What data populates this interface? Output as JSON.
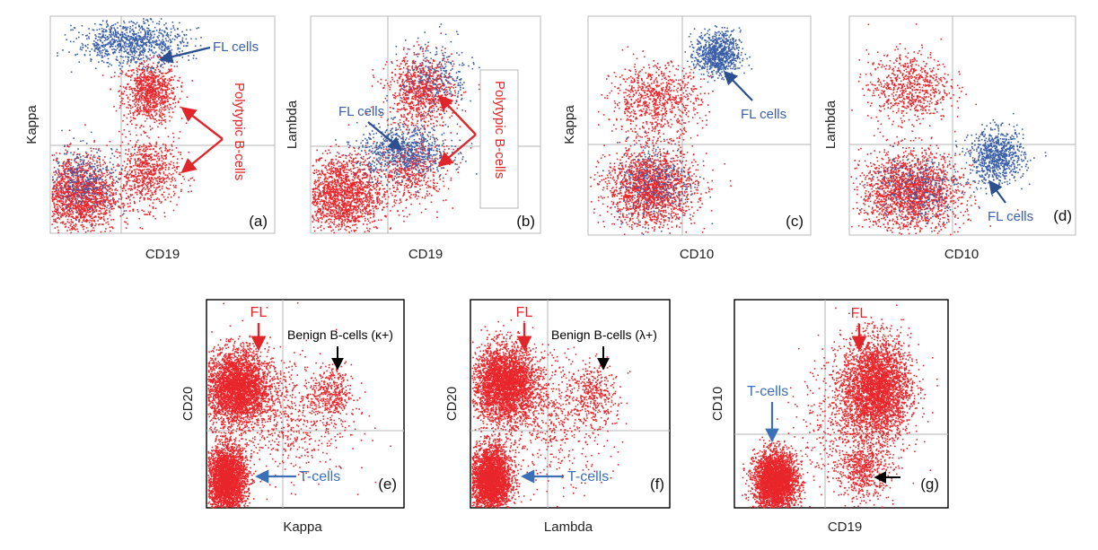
{
  "colors": {
    "red": "#e8262b",
    "blue": "#3a5fa8",
    "arrow_blue": "#3b6fb6",
    "arrow_red": "#e0262a",
    "black": "#000000"
  },
  "chart_data": [
    {
      "type": "scatter",
      "panel": "(a)",
      "xlabel": "CD19",
      "ylabel": "Kappa",
      "grid": false,
      "quadrant_gates": true,
      "series": [
        {
          "color": "red",
          "clusters": [
            {
              "label": "polytypic B-cells upper",
              "cx": 0.44,
              "cy": 0.65,
              "sx": 0.06,
              "sy": 0.07,
              "n": 900
            },
            {
              "label": "polytypic B-cells lower",
              "cx": 0.43,
              "cy": 0.28,
              "sx": 0.07,
              "sy": 0.08,
              "n": 700
            },
            {
              "label": "negative",
              "cx": 0.12,
              "cy": 0.18,
              "sx": 0.09,
              "sy": 0.09,
              "n": 1700
            }
          ]
        },
        {
          "color": "blue",
          "clusters": [
            {
              "label": "FL cells",
              "cx": 0.36,
              "cy": 0.88,
              "sx": 0.12,
              "sy": 0.05,
              "n": 900
            },
            {
              "label": "negative",
              "cx": 0.15,
              "cy": 0.25,
              "sx": 0.09,
              "sy": 0.08,
              "n": 350
            }
          ]
        }
      ],
      "annotations": [
        {
          "text": "FL cells",
          "color": "blue"
        },
        {
          "text": "Polytypic B-cells",
          "color": "red"
        }
      ]
    },
    {
      "type": "scatter",
      "panel": "(b)",
      "xlabel": "CD19",
      "ylabel": "Lambda",
      "grid": false,
      "quadrant_gates": true,
      "series": [
        {
          "color": "red",
          "clusters": [
            {
              "label": "polytypic B-cells upper",
              "cx": 0.48,
              "cy": 0.66,
              "sx": 0.07,
              "sy": 0.08,
              "n": 900
            },
            {
              "label": "polytypic B-cells lower",
              "cx": 0.43,
              "cy": 0.3,
              "sx": 0.08,
              "sy": 0.08,
              "n": 600
            },
            {
              "label": "negative",
              "cx": 0.13,
              "cy": 0.18,
              "sx": 0.09,
              "sy": 0.09,
              "n": 1700
            }
          ]
        },
        {
          "color": "blue",
          "clusters": [
            {
              "label": "FL cells",
              "cx": 0.4,
              "cy": 0.38,
              "sx": 0.1,
              "sy": 0.06,
              "n": 700
            },
            {
              "label": "upper diffuse",
              "cx": 0.55,
              "cy": 0.72,
              "sx": 0.08,
              "sy": 0.09,
              "n": 250
            }
          ]
        }
      ],
      "annotations": [
        {
          "text": "FL cells",
          "color": "blue"
        },
        {
          "text": "Polytypic B-cells",
          "color": "red"
        }
      ]
    },
    {
      "type": "scatter",
      "panel": "(c)",
      "xlabel": "CD10",
      "ylabel": "Kappa",
      "grid": false,
      "quadrant_gates": true,
      "series": [
        {
          "color": "red",
          "clusters": [
            {
              "label": "upper left",
              "cx": 0.3,
              "cy": 0.62,
              "sx": 0.1,
              "sy": 0.08,
              "n": 800
            },
            {
              "label": "negative",
              "cx": 0.28,
              "cy": 0.22,
              "sx": 0.1,
              "sy": 0.09,
              "n": 1800
            }
          ]
        },
        {
          "color": "blue",
          "clusters": [
            {
              "label": "FL cells",
              "cx": 0.58,
              "cy": 0.83,
              "sx": 0.05,
              "sy": 0.05,
              "n": 800
            },
            {
              "label": "negative",
              "cx": 0.3,
              "cy": 0.25,
              "sx": 0.09,
              "sy": 0.09,
              "n": 300
            }
          ]
        }
      ],
      "annotations": [
        {
          "text": "FL cells",
          "color": "blue"
        }
      ]
    },
    {
      "type": "scatter",
      "panel": "(d)",
      "xlabel": "CD10",
      "ylabel": "Lambda",
      "grid": false,
      "quadrant_gates": true,
      "series": [
        {
          "color": "red",
          "clusters": [
            {
              "label": "upper left",
              "cx": 0.26,
              "cy": 0.68,
              "sx": 0.09,
              "sy": 0.08,
              "n": 700
            },
            {
              "label": "negative",
              "cx": 0.27,
              "cy": 0.2,
              "sx": 0.11,
              "sy": 0.09,
              "n": 1900
            }
          ]
        },
        {
          "color": "blue",
          "clusters": [
            {
              "label": "FL cells",
              "cx": 0.65,
              "cy": 0.36,
              "sx": 0.06,
              "sy": 0.06,
              "n": 800
            },
            {
              "label": "negative",
              "cx": 0.3,
              "cy": 0.22,
              "sx": 0.1,
              "sy": 0.08,
              "n": 300
            }
          ]
        }
      ],
      "annotations": [
        {
          "text": "FL cells",
          "color": "blue"
        }
      ]
    },
    {
      "type": "scatter",
      "panel": "(e)",
      "xlabel": "Kappa",
      "ylabel": "CD20",
      "grid": false,
      "quadrant_gates": true,
      "series": [
        {
          "color": "red",
          "clusters": [
            {
              "label": "FL",
              "cx": 0.15,
              "cy": 0.58,
              "sx": 0.08,
              "sy": 0.09,
              "n": 3200
            },
            {
              "label": "T-cells",
              "cx": 0.1,
              "cy": 0.14,
              "sx": 0.05,
              "sy": 0.08,
              "n": 3000
            },
            {
              "label": "Benign B-cells (κ+)",
              "cx": 0.63,
              "cy": 0.55,
              "sx": 0.05,
              "sy": 0.07,
              "n": 350
            },
            {
              "label": "diffuse",
              "cx": 0.4,
              "cy": 0.45,
              "sx": 0.16,
              "sy": 0.15,
              "n": 700
            }
          ]
        }
      ],
      "annotations": [
        {
          "text": "FL",
          "color": "red"
        },
        {
          "text": "Benign B-cells (κ+)",
          "color": "black"
        },
        {
          "text": "T-cells",
          "color": "blue"
        }
      ]
    },
    {
      "type": "scatter",
      "panel": "(f)",
      "xlabel": "Lambda",
      "ylabel": "CD20",
      "grid": false,
      "quadrant_gates": true,
      "series": [
        {
          "color": "red",
          "clusters": [
            {
              "label": "FL",
              "cx": 0.17,
              "cy": 0.6,
              "sx": 0.08,
              "sy": 0.09,
              "n": 3200
            },
            {
              "label": "T-cells",
              "cx": 0.1,
              "cy": 0.14,
              "sx": 0.05,
              "sy": 0.08,
              "n": 3000
            },
            {
              "label": "Benign B-cells (λ+)",
              "cx": 0.62,
              "cy": 0.55,
              "sx": 0.05,
              "sy": 0.07,
              "n": 300
            },
            {
              "label": "diffuse",
              "cx": 0.4,
              "cy": 0.45,
              "sx": 0.16,
              "sy": 0.15,
              "n": 700
            }
          ]
        }
      ],
      "annotations": [
        {
          "text": "FL",
          "color": "red"
        },
        {
          "text": "Benign B-cells (λ+)",
          "color": "black"
        },
        {
          "text": "T-cells",
          "color": "blue"
        }
      ]
    },
    {
      "type": "scatter",
      "panel": "(g)",
      "xlabel": "CD19",
      "ylabel": "CD10",
      "grid": false,
      "quadrant_gates": true,
      "series": [
        {
          "color": "red",
          "clusters": [
            {
              "label": "FL",
              "cx": 0.66,
              "cy": 0.58,
              "sx": 0.08,
              "sy": 0.12,
              "n": 3200
            },
            {
              "label": "T-cells",
              "cx": 0.19,
              "cy": 0.13,
              "sx": 0.05,
              "sy": 0.07,
              "n": 3200
            },
            {
              "label": "CD10-negative B-cells",
              "cx": 0.6,
              "cy": 0.18,
              "sx": 0.06,
              "sy": 0.07,
              "n": 500
            },
            {
              "label": "diffuse",
              "cx": 0.55,
              "cy": 0.4,
              "sx": 0.12,
              "sy": 0.16,
              "n": 600
            }
          ]
        }
      ],
      "annotations": [
        {
          "text": "FL",
          "color": "red"
        },
        {
          "text": "T-cells",
          "color": "blue"
        }
      ]
    }
  ]
}
